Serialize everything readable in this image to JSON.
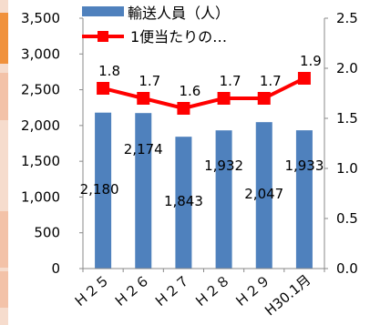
{
  "chart_data": {
    "type": "bar+line",
    "categories": [
      "Ｈ２５",
      "Ｈ２６",
      "Ｈ２７",
      "Ｈ２８",
      "Ｈ２９",
      "H30.1月"
    ],
    "series": [
      {
        "name": "輸送人員（人）",
        "type": "bar",
        "axis": "left",
        "values": [
          2180,
          2174,
          1843,
          1932,
          2047,
          1933
        ],
        "labels": [
          "2,180",
          "2,174",
          "1,843",
          "1,932",
          "2,047",
          "1,933"
        ]
      },
      {
        "name": "1便当たりの…",
        "type": "line",
        "axis": "right",
        "values": [
          1.8,
          1.7,
          1.6,
          1.7,
          1.7,
          1.9
        ],
        "labels": [
          "1.8",
          "1.7",
          "1.6",
          "1.7",
          "1.7",
          "1.9"
        ]
      }
    ],
    "y_left": {
      "min": 0,
      "max": 3500,
      "ticks": [
        "0",
        "500",
        "1,000",
        "1,500",
        "2,000",
        "2,500",
        "3,000",
        "3,500"
      ]
    },
    "y_right": {
      "min": 0,
      "max": 2.5,
      "ticks": [
        "0.0",
        "0.5",
        "1.0",
        "1.5",
        "2.0",
        "2.5"
      ]
    },
    "grid": false,
    "legend_position": "top",
    "colors": {
      "bar": "#4f81bd",
      "line": "#ff0000",
      "side_strip": "#f0913c"
    }
  }
}
